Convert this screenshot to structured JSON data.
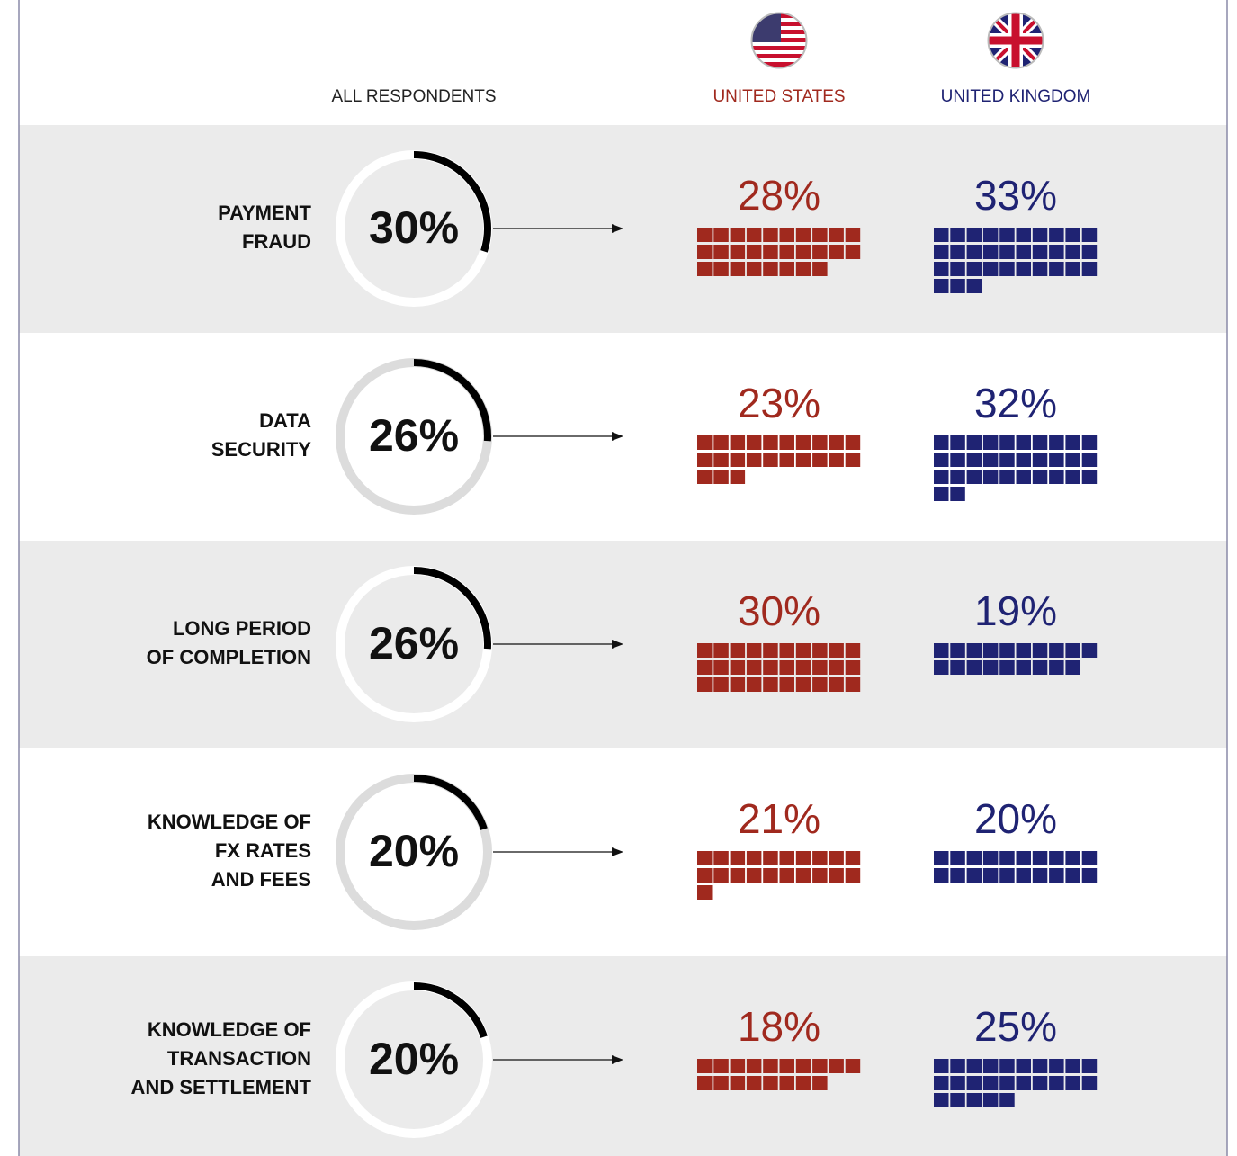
{
  "chart_data": {
    "type": "waffle",
    "categories": [
      "PAYMENT\nFRAUD",
      "DATA\nSECURITY",
      "LONG PERIOD\nOF COMPLETION",
      "KNOWLEDGE OF\nFX RATES\nAND FEES",
      "KNOWLEDGE OF\nTRANSACTION\nAND SETTLEMENT"
    ],
    "overall": {
      "name": "ALL RESPONDENTS",
      "color": "#000000",
      "values": [
        30,
        26,
        26,
        20,
        20
      ],
      "value_labels": [
        "30%",
        "26%",
        "26%",
        "20%",
        "20%"
      ]
    },
    "series": [
      {
        "name": "UNITED STATES",
        "color": "#a0291e",
        "values": [
          28,
          23,
          30,
          21,
          18
        ],
        "value_labels": [
          "28%",
          "23%",
          "30%",
          "21%",
          "18%"
        ]
      },
      {
        "name": "UNITED KINGDOM",
        "color": "#1f2373",
        "values": [
          33,
          32,
          19,
          20,
          25
        ],
        "value_labels": [
          "33%",
          "32%",
          "19%",
          "20%",
          "25%"
        ]
      }
    ]
  }
}
